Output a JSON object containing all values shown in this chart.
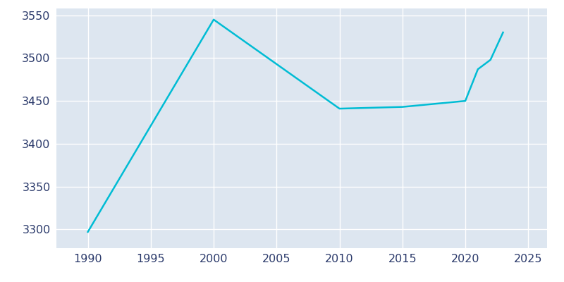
{
  "years": [
    1990,
    2000,
    2010,
    2015,
    2020,
    2021,
    2022,
    2023
  ],
  "population": [
    3297,
    3545,
    3441,
    3443,
    3450,
    3487,
    3498,
    3530
  ],
  "line_color": "#00bcd4",
  "plot_bg_color": "#dde6f0",
  "fig_bg_color": "#ffffff",
  "grid_color": "#ffffff",
  "text_color": "#2b3a6b",
  "xlim": [
    1987.5,
    2026.5
  ],
  "ylim": [
    3278,
    3558
  ],
  "xticks": [
    1990,
    1995,
    2000,
    2005,
    2010,
    2015,
    2020,
    2025
  ],
  "yticks": [
    3300,
    3350,
    3400,
    3450,
    3500,
    3550
  ],
  "linewidth": 1.8,
  "figsize": [
    8.0,
    4.0
  ],
  "dpi": 100,
  "tick_labelsize": 11.5
}
